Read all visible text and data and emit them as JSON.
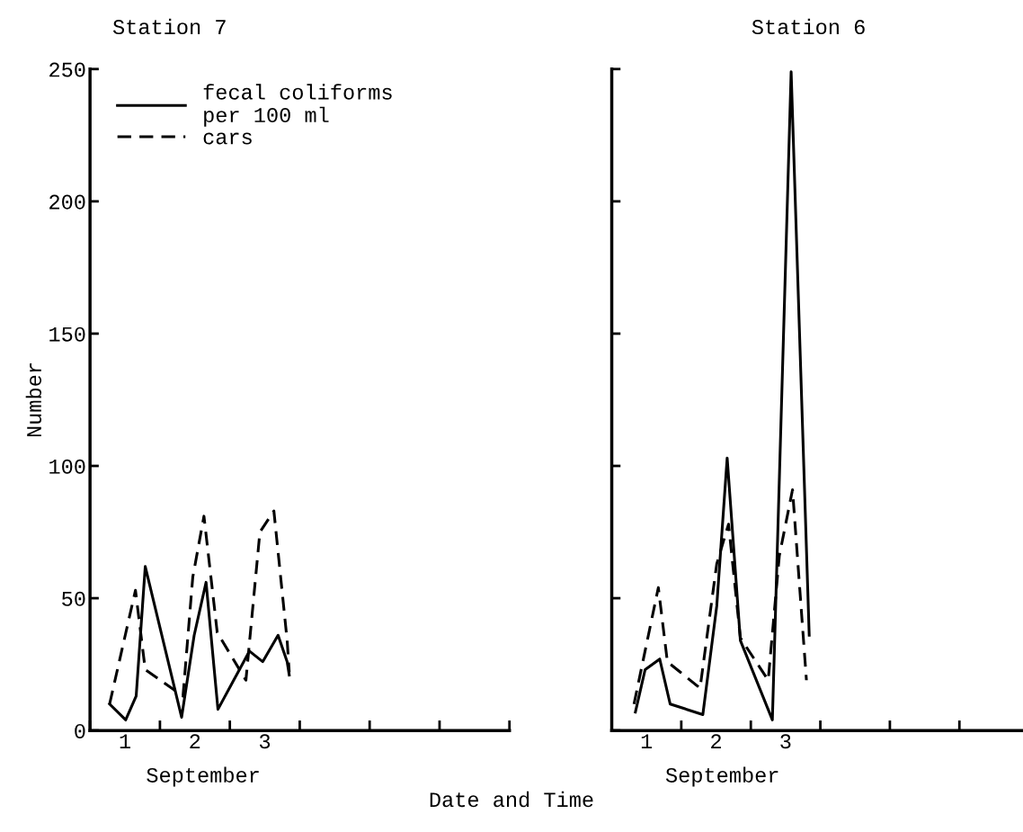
{
  "chart_data": [
    {
      "type": "line",
      "title": "Station 7",
      "xlabel": "September",
      "ylabel": "Number",
      "xlim": [
        0,
        6
      ],
      "ylim": [
        0,
        250
      ],
      "xticks": [
        {
          "value": 0,
          "label": null
        },
        {
          "value": 0.5,
          "label": "1"
        },
        {
          "value": 1,
          "label": null
        },
        {
          "value": 1.5,
          "label": "2"
        },
        {
          "value": 2,
          "label": null
        },
        {
          "value": 2.5,
          "label": "3"
        },
        {
          "value": 3,
          "label": null
        },
        {
          "value": 4,
          "label": null
        },
        {
          "value": 5,
          "label": null
        },
        {
          "value": 6,
          "label": null
        }
      ],
      "yticks": [
        0,
        50,
        100,
        150,
        200,
        250
      ],
      "legend": "top left",
      "grid": false,
      "series": [
        {
          "name": "fecal coliforms\nper 100 ml",
          "color": "#000000",
          "line_style": "solid",
          "x": [
            0.28,
            0.51,
            0.66,
            0.79,
            1.31,
            1.49,
            1.66,
            1.83,
            2.28,
            2.47,
            2.69,
            2.82,
            2.85
          ],
          "values": [
            10,
            4,
            13,
            62,
            5,
            36,
            56,
            8,
            30,
            26,
            36,
            26,
            21
          ]
        },
        {
          "name": "cars",
          "color": "#000000",
          "line_style": "dashed",
          "x": [
            0.28,
            0.65,
            0.79,
            1.33,
            1.47,
            1.63,
            1.82,
            2.23,
            2.43,
            2.63,
            2.82,
            2.85
          ],
          "values": [
            10,
            53,
            23,
            13,
            58,
            81,
            37,
            19,
            75,
            83,
            34,
            22
          ]
        }
      ],
      "annotations": [
        "Date and Time"
      ]
    },
    {
      "type": "line",
      "title": "Station 6",
      "xlabel": "September",
      "xlim": [
        0,
        5.9
      ],
      "ylim": [
        0,
        250
      ],
      "xticks": [
        {
          "value": 0,
          "label": null
        },
        {
          "value": 0.5,
          "label": "1"
        },
        {
          "value": 1,
          "label": null
        },
        {
          "value": 1.5,
          "label": "2"
        },
        {
          "value": 2,
          "label": null
        },
        {
          "value": 2.5,
          "label": "3"
        },
        {
          "value": 3,
          "label": null
        },
        {
          "value": 4,
          "label": null
        },
        {
          "value": 5,
          "label": null
        }
      ],
      "yticks": [
        0,
        50,
        100,
        150,
        200,
        250
      ],
      "tick_labels": "x",
      "grid": false,
      "series": [
        {
          "color": "#000000",
          "line_style": "solid",
          "x": [
            0.34,
            0.48,
            0.69,
            0.84,
            1.31,
            1.51,
            1.66,
            1.85,
            2.31,
            2.58,
            2.84
          ],
          "values": [
            7,
            23,
            27,
            10,
            6,
            47,
            103,
            34,
            4,
            249,
            36
          ]
        },
        {
          "color": "#000000",
          "line_style": "dashed",
          "x": [
            0.32,
            0.67,
            0.8,
            1.27,
            1.51,
            1.68,
            1.85,
            2.25,
            2.41,
            2.6,
            2.8
          ],
          "values": [
            10,
            54,
            26,
            16,
            63,
            78,
            35,
            19,
            66,
            91,
            19
          ]
        }
      ]
    }
  ]
}
